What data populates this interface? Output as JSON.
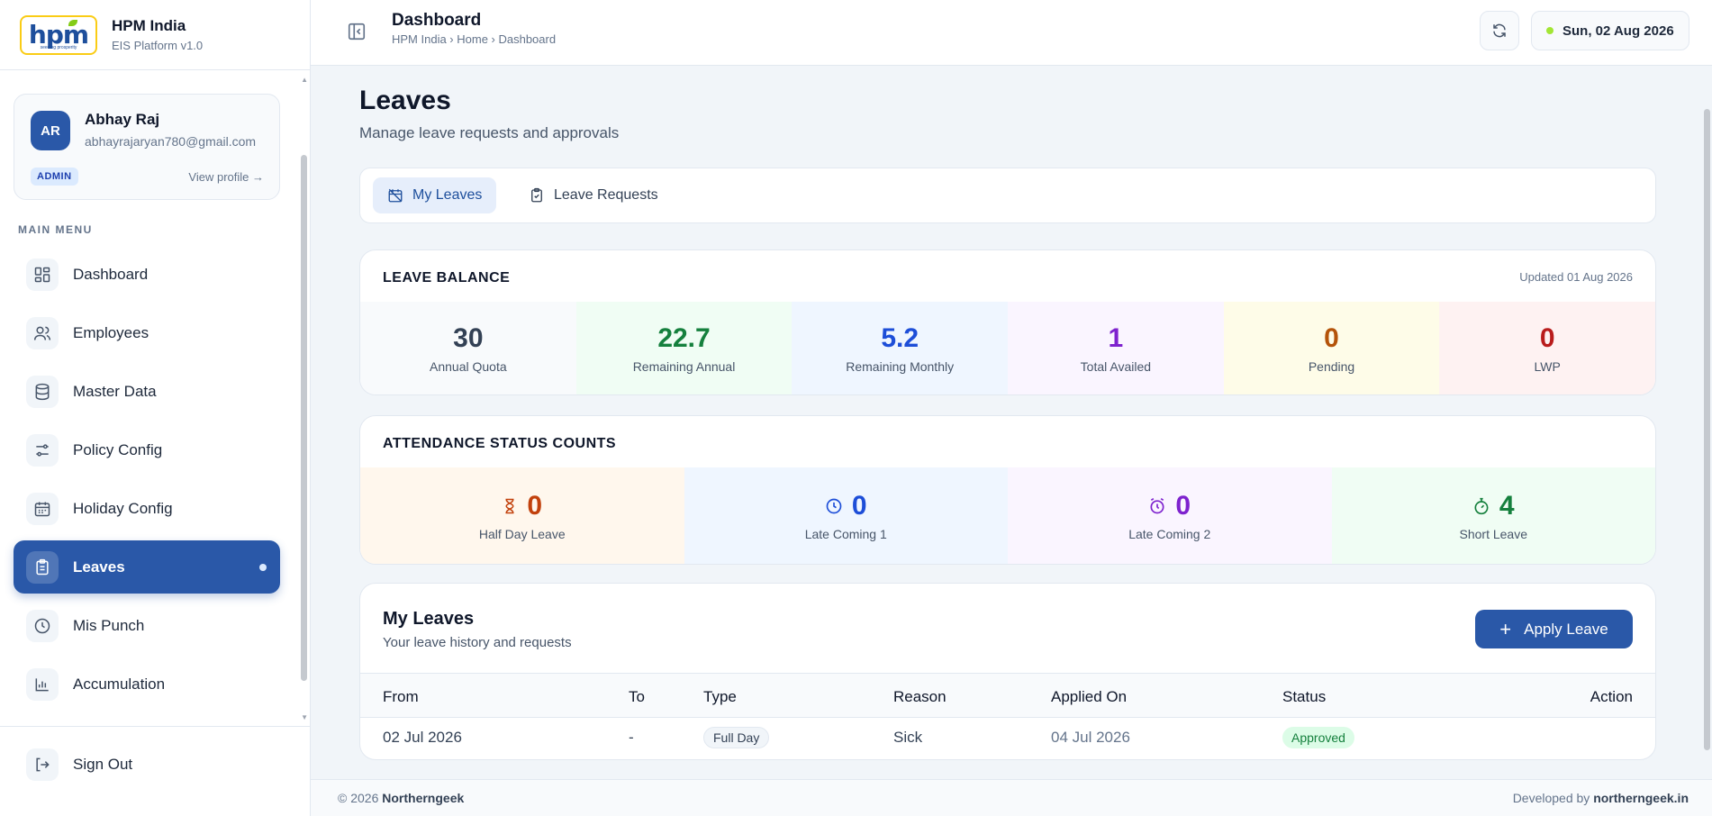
{
  "brand": {
    "name": "HPM India",
    "version": "EIS Platform v1.0",
    "logo_text": "hpm",
    "logo_tagline": "seeding prosperity"
  },
  "profile": {
    "initials": "AR",
    "name": "Abhay Raj",
    "email": "abhayrajaryan780@gmail.com",
    "role": "ADMIN",
    "view_profile": "View profile →"
  },
  "sidebar": {
    "menu_label": "MAIN MENU",
    "items": [
      {
        "label": "Dashboard",
        "icon": "dashboard-icon"
      },
      {
        "label": "Employees",
        "icon": "users-icon"
      },
      {
        "label": "Master Data",
        "icon": "database-icon"
      },
      {
        "label": "Policy Config",
        "icon": "sliders-icon"
      },
      {
        "label": "Holiday Config",
        "icon": "calendar-icon"
      },
      {
        "label": "Leaves",
        "icon": "clipboard-icon",
        "active": true
      },
      {
        "label": "Mis Punch",
        "icon": "clock-icon"
      },
      {
        "label": "Accumulation",
        "icon": "bar-chart-icon"
      }
    ],
    "sign_out": "Sign Out"
  },
  "topbar": {
    "title": "Dashboard",
    "breadcrumb": "HPM India › Home › Dashboard",
    "date": "Sun, 02 Aug 2026"
  },
  "page": {
    "title": "Leaves",
    "subtitle": "Manage leave requests and approvals"
  },
  "tabs": [
    {
      "label": "My Leaves",
      "active": true
    },
    {
      "label": "Leave Requests",
      "active": false
    }
  ],
  "leave_balance": {
    "title": "LEAVE BALANCE",
    "updated": "Updated 01 Aug 2026",
    "tiles": [
      {
        "value": "30",
        "label": "Annual Quota",
        "color": "#334155",
        "bg": "#f8fafc"
      },
      {
        "value": "22.7",
        "label": "Remaining Annual",
        "color": "#15803d",
        "bg": "#f0fdf4"
      },
      {
        "value": "5.2",
        "label": "Remaining Monthly",
        "color": "#1d4ed8",
        "bg": "#eff6ff"
      },
      {
        "value": "1",
        "label": "Total Availed",
        "color": "#7e22ce",
        "bg": "#faf5ff"
      },
      {
        "value": "0",
        "label": "Pending",
        "color": "#b45309",
        "bg": "#fefce8"
      },
      {
        "value": "0",
        "label": "LWP",
        "color": "#b91c1c",
        "bg": "#fef2f2"
      }
    ]
  },
  "attendance": {
    "title": "ATTENDANCE STATUS COUNTS",
    "tiles": [
      {
        "value": "0",
        "label": "Half Day Leave",
        "icon": "hourglass-icon",
        "color": "#c2410c",
        "bg": "#fff7ed"
      },
      {
        "value": "0",
        "label": "Late Coming 1",
        "icon": "clock-icon",
        "color": "#1d4ed8",
        "bg": "#eff6ff"
      },
      {
        "value": "0",
        "label": "Late Coming 2",
        "icon": "alarm-icon",
        "color": "#7e22ce",
        "bg": "#faf5ff"
      },
      {
        "value": "4",
        "label": "Short Leave",
        "icon": "timer-icon",
        "color": "#15803d",
        "bg": "#f0fdf4"
      }
    ]
  },
  "my_leaves": {
    "title": "My Leaves",
    "subtitle": "Your leave history and requests",
    "apply_label": "Apply Leave",
    "columns": [
      "From",
      "To",
      "Type",
      "Reason",
      "Applied On",
      "Status",
      "Action"
    ],
    "rows": [
      {
        "from": "02 Jul 2026",
        "to": "-",
        "type": "Full Day",
        "reason": "Sick",
        "applied_on": "04 Jul 2026",
        "status": "Approved"
      }
    ]
  },
  "footer": {
    "copyright": "© 2026",
    "company": "Northerngeek",
    "developed_by": "Developed by",
    "dev_site": "northerngeek.in"
  },
  "colors": {
    "primary": "#2a58a8",
    "accent_logo": "#facc15",
    "status_dot": "#a3e635"
  }
}
